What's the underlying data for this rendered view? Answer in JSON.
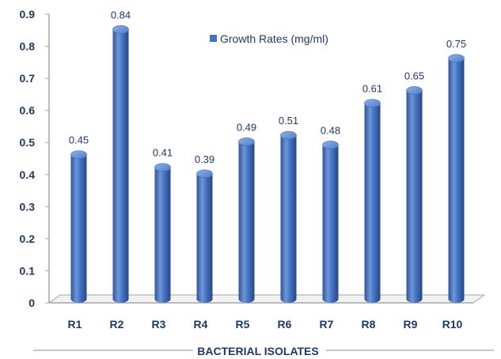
{
  "chart_data": {
    "type": "bar",
    "categories": [
      "R1",
      "R2",
      "R3",
      "R4",
      "R5",
      "R6",
      "R7",
      "R8",
      "R9",
      "R10"
    ],
    "series": [
      {
        "name": "Growth Rates (mg/ml)",
        "values": [
          0.45,
          0.84,
          0.41,
          0.39,
          0.49,
          0.51,
          0.48,
          0.61,
          0.65,
          0.75
        ]
      }
    ],
    "data_labels": [
      "0.45",
      "0.84",
      "0.41",
      "0.39",
      "0.49",
      "0.51",
      "0.48",
      "0.61",
      "0.65",
      "0.75"
    ],
    "y_ticks": [
      "0",
      "0.1",
      "0.2",
      "0.3",
      "0.4",
      "0.5",
      "0.6",
      "0.7",
      "0.8",
      "0.9"
    ],
    "ylim": [
      0,
      0.9
    ],
    "xlabel": "BACTERIAL ISOLATES",
    "ylabel": "",
    "title": "",
    "legend_position": "top-right",
    "grid": false,
    "bar_style": "3d-cylinder",
    "colors": {
      "bar": "#4472c4",
      "bar_dark": "#2e5597",
      "bar_light": "#7fa6e0",
      "text": "#1f3864",
      "axis": "#a6a6a6",
      "floor": "#d9d9d9"
    }
  }
}
